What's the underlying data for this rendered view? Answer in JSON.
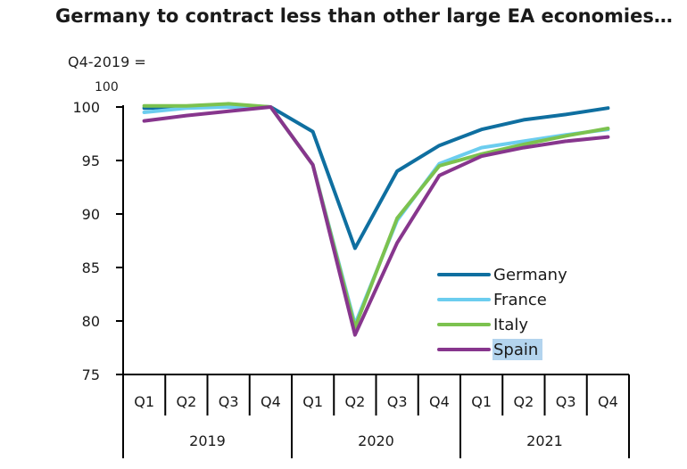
{
  "title": "Germany to contract less than other large EA economies…",
  "unit_label": "Q4-2019 =",
  "unit_label_cont": "100",
  "chart_data": {
    "type": "line",
    "title": "Germany to contract less than other large EA economies…",
    "ylabel": "Q4-2019 = 100",
    "ylim": [
      75,
      101
    ],
    "yticks": [
      75,
      80,
      85,
      90,
      95,
      100
    ],
    "grid": false,
    "legend_position": "lower-right",
    "categories": [
      "Q1",
      "Q2",
      "Q3",
      "Q4",
      "Q1",
      "Q2",
      "Q3",
      "Q4",
      "Q1",
      "Q2",
      "Q3",
      "Q4"
    ],
    "years": [
      {
        "label": "2019",
        "quarters": 4
      },
      {
        "label": "2020",
        "quarters": 4
      },
      {
        "label": "2021",
        "quarters": 4
      }
    ],
    "series": [
      {
        "name": "Germany",
        "color": "#0f6fa0",
        "values": [
          99.9,
          100.0,
          100.2,
          100.0,
          97.7,
          86.8,
          94.0,
          96.4,
          97.9,
          98.8,
          99.3,
          99.9
        ]
      },
      {
        "name": "France",
        "color": "#6ccdef",
        "values": [
          99.5,
          99.9,
          100.0,
          100.0,
          94.6,
          79.7,
          89.4,
          94.7,
          96.2,
          96.8,
          97.4,
          97.9
        ]
      },
      {
        "name": "Italy",
        "color": "#7cc24f",
        "values": [
          100.1,
          100.1,
          100.3,
          100.0,
          94.6,
          79.4,
          89.6,
          94.5,
          95.6,
          96.5,
          97.3,
          98.0
        ]
      },
      {
        "name": "Spain",
        "color": "#87368d",
        "values": [
          98.7,
          99.2,
          99.6,
          100.0,
          94.6,
          78.7,
          87.3,
          93.6,
          95.4,
          96.2,
          96.8,
          97.2
        ]
      }
    ],
    "highlighted_legend_entry": "Spain"
  }
}
